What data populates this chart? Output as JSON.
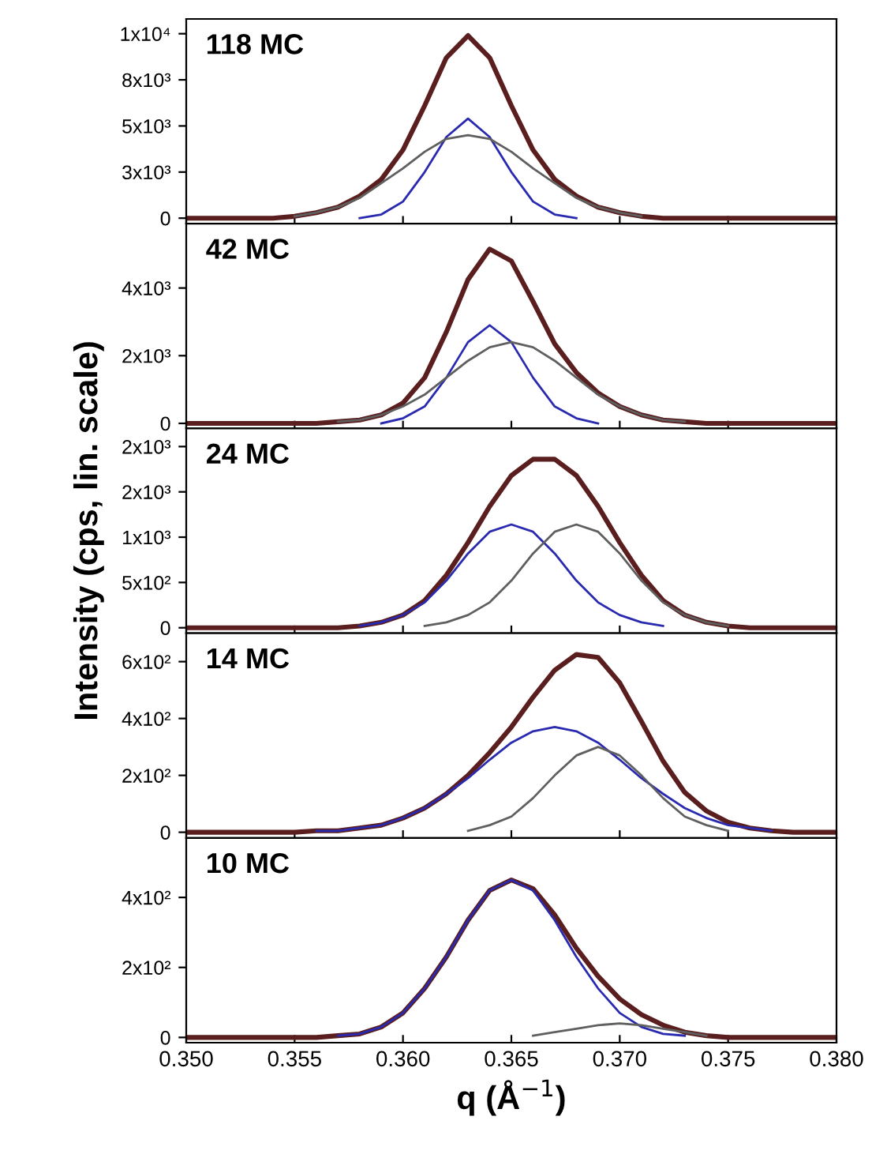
{
  "chart_data": [
    {
      "type": "line",
      "annotations": [
        "118 MC"
      ],
      "x": [
        0.35,
        0.351,
        0.352,
        0.353,
        0.354,
        0.355,
        0.356,
        0.357,
        0.358,
        0.359,
        0.36,
        0.361,
        0.362,
        0.363,
        0.364,
        0.365,
        0.366,
        0.367,
        0.368,
        0.369,
        0.37,
        0.371,
        0.372,
        0.373,
        0.374,
        0.375,
        0.376,
        0.377,
        0.378,
        0.379,
        0.38
      ],
      "series": [
        {
          "color": "#5a1e1e",
          "values": [
            0,
            0,
            0,
            0,
            0,
            100,
            300,
            600,
            1200,
            2100,
            3700,
            6100,
            8700,
            9900,
            8700,
            6100,
            3700,
            2100,
            1200,
            600,
            300,
            100,
            0,
            0,
            0,
            0,
            0,
            0,
            0,
            0,
            0
          ]
        },
        {
          "color": "#2a2ab0",
          "values": [
            null,
            null,
            null,
            null,
            null,
            null,
            null,
            null,
            0,
            200,
            900,
            2500,
            4400,
            5400,
            4400,
            2500,
            900,
            200,
            0,
            null,
            null,
            null,
            null,
            null,
            null,
            null,
            null,
            null,
            null,
            null,
            null
          ]
        },
        {
          "color": "#5f5f5f",
          "values": [
            null,
            null,
            null,
            null,
            null,
            100,
            300,
            600,
            1100,
            1900,
            2700,
            3600,
            4300,
            4500,
            4300,
            3600,
            2700,
            1900,
            1100,
            600,
            300,
            100,
            null,
            null,
            null,
            null,
            null,
            null,
            null,
            null,
            null
          ]
        }
      ],
      "xlim": [
        0.35,
        0.38
      ],
      "ylim": [
        -300,
        10800
      ],
      "yticks": [
        0,
        {
          "value": 2500,
          "label": "3x10³"
        },
        {
          "value": 5000,
          "label": "5x10³"
        },
        {
          "value": 7500,
          "label": "8x10³"
        },
        {
          "value": 10000,
          "label": "1x10⁴"
        }
      ],
      "tick_labels": "y",
      "marker": "none",
      "line_style": "solid",
      "grid": false,
      "legend": false
    },
    {
      "type": "line",
      "annotations": [
        "42 MC"
      ],
      "x": [
        0.35,
        0.351,
        0.352,
        0.353,
        0.354,
        0.355,
        0.356,
        0.357,
        0.358,
        0.359,
        0.36,
        0.361,
        0.362,
        0.363,
        0.364,
        0.365,
        0.366,
        0.367,
        0.368,
        0.369,
        0.37,
        0.371,
        0.372,
        0.373,
        0.374,
        0.375,
        0.376,
        0.377,
        0.378,
        0.379,
        0.38
      ],
      "series": [
        {
          "color": "#5a1e1e",
          "values": [
            0,
            0,
            0,
            0,
            0,
            0,
            0,
            50,
            100,
            250,
            600,
            1350,
            2700,
            4250,
            5150,
            4800,
            3600,
            2350,
            1500,
            900,
            500,
            250,
            100,
            50,
            0,
            0,
            0,
            0,
            0,
            0,
            0
          ]
        },
        {
          "color": "#2a2ab0",
          "values": [
            null,
            null,
            null,
            null,
            null,
            null,
            null,
            null,
            null,
            0,
            150,
            500,
            1350,
            2400,
            2900,
            2400,
            1350,
            500,
            150,
            0,
            null,
            null,
            null,
            null,
            null,
            null,
            null,
            null,
            null,
            null,
            null
          ]
        },
        {
          "color": "#5f5f5f",
          "values": [
            null,
            null,
            null,
            null,
            null,
            null,
            null,
            50,
            100,
            250,
            500,
            850,
            1350,
            1850,
            2250,
            2400,
            2250,
            1850,
            1350,
            850,
            500,
            250,
            100,
            50,
            null,
            null,
            null,
            null,
            null,
            null,
            null
          ]
        }
      ],
      "xlim": [
        0.35,
        0.38
      ],
      "ylim": [
        -150,
        5900
      ],
      "yticks": [
        0,
        {
          "value": 2000,
          "label": "2x10³"
        },
        {
          "value": 4000,
          "label": "4x10³"
        }
      ],
      "tick_labels": "y",
      "marker": "none",
      "line_style": "solid",
      "grid": false,
      "legend": false
    },
    {
      "type": "line",
      "annotations": [
        "24 MC"
      ],
      "ylabel": "Intensity (cps, lin. scale)",
      "x": [
        0.35,
        0.351,
        0.352,
        0.353,
        0.354,
        0.355,
        0.356,
        0.357,
        0.358,
        0.359,
        0.36,
        0.361,
        0.362,
        0.363,
        0.364,
        0.365,
        0.366,
        0.367,
        0.368,
        0.369,
        0.37,
        0.371,
        0.372,
        0.373,
        0.374,
        0.375,
        0.376,
        0.377,
        0.378,
        0.379,
        0.38
      ],
      "series": [
        {
          "color": "#5a1e1e",
          "values": [
            0,
            0,
            0,
            0,
            0,
            0,
            0,
            0,
            20,
            60,
            140,
            300,
            580,
            940,
            1340,
            1680,
            1860,
            1860,
            1680,
            1340,
            940,
            580,
            300,
            140,
            60,
            20,
            0,
            0,
            0,
            0,
            0
          ]
        },
        {
          "color": "#2a2ab0",
          "values": [
            null,
            null,
            null,
            null,
            null,
            null,
            null,
            null,
            20,
            60,
            140,
            280,
            520,
            820,
            1060,
            1140,
            1060,
            820,
            520,
            280,
            140,
            60,
            20,
            null,
            null,
            null,
            null,
            null,
            null,
            null,
            null
          ]
        },
        {
          "color": "#5f5f5f",
          "values": [
            null,
            null,
            null,
            null,
            null,
            null,
            null,
            null,
            null,
            null,
            null,
            20,
            60,
            140,
            280,
            520,
            820,
            1060,
            1140,
            1060,
            820,
            520,
            280,
            140,
            60,
            20,
            null,
            null,
            null,
            null,
            null
          ]
        }
      ],
      "xlim": [
        0.35,
        0.38
      ],
      "ylim": [
        -60,
        2200
      ],
      "yticks": [
        0,
        {
          "value": 500,
          "label": "5x10²"
        },
        {
          "value": 1000,
          "label": "1x10³"
        },
        {
          "value": 1500,
          "label": "2x10³"
        },
        {
          "value": 2000,
          "label": "2x10³"
        }
      ],
      "tick_labels": "y",
      "marker": "none",
      "line_style": "solid",
      "grid": false,
      "legend": false
    },
    {
      "type": "line",
      "annotations": [
        "14 MC"
      ],
      "x": [
        0.35,
        0.351,
        0.352,
        0.353,
        0.354,
        0.355,
        0.356,
        0.357,
        0.358,
        0.359,
        0.36,
        0.361,
        0.362,
        0.363,
        0.364,
        0.365,
        0.366,
        0.367,
        0.368,
        0.369,
        0.37,
        0.371,
        0.372,
        0.373,
        0.374,
        0.375,
        0.376,
        0.377,
        0.378,
        0.379,
        0.38
      ],
      "series": [
        {
          "color": "#5a1e1e",
          "values": [
            0,
            0,
            0,
            0,
            0,
            0,
            5,
            5,
            15,
            25,
            50,
            85,
            135,
            200,
            280,
            370,
            475,
            570,
            625,
            615,
            525,
            390,
            250,
            140,
            75,
            35,
            15,
            5,
            0,
            0,
            0
          ]
        },
        {
          "color": "#2a2ab0",
          "values": [
            null,
            null,
            null,
            null,
            null,
            null,
            5,
            5,
            15,
            25,
            50,
            85,
            135,
            190,
            255,
            315,
            355,
            370,
            355,
            315,
            255,
            190,
            135,
            85,
            50,
            25,
            15,
            5,
            null,
            null,
            null
          ]
        },
        {
          "color": "#5f5f5f",
          "values": [
            null,
            null,
            null,
            null,
            null,
            null,
            null,
            null,
            null,
            null,
            null,
            null,
            null,
            5,
            25,
            55,
            120,
            200,
            270,
            300,
            270,
            200,
            120,
            55,
            25,
            5,
            null,
            null,
            null,
            null,
            null
          ]
        }
      ],
      "xlim": [
        0.35,
        0.38
      ],
      "ylim": [
        -20,
        700
      ],
      "yticks": [
        0,
        {
          "value": 200,
          "label": "2x10²"
        },
        {
          "value": 400,
          "label": "4x10²"
        },
        {
          "value": 600,
          "label": "6x10²"
        }
      ],
      "tick_labels": "y",
      "marker": "none",
      "line_style": "solid",
      "grid": false,
      "legend": false
    },
    {
      "type": "line",
      "annotations": [
        "10 MC"
      ],
      "xlabel": "q (Å$^{−1}$)",
      "x": [
        0.35,
        0.351,
        0.352,
        0.353,
        0.354,
        0.355,
        0.356,
        0.357,
        0.358,
        0.359,
        0.36,
        0.361,
        0.362,
        0.363,
        0.364,
        0.365,
        0.366,
        0.367,
        0.368,
        0.369,
        0.37,
        0.371,
        0.372,
        0.373,
        0.374,
        0.375,
        0.376,
        0.377,
        0.378,
        0.379,
        0.38
      ],
      "series": [
        {
          "color": "#5a1e1e",
          "values": [
            0,
            0,
            0,
            0,
            0,
            0,
            0,
            5,
            10,
            30,
            70,
            140,
            230,
            335,
            420,
            450,
            425,
            350,
            255,
            175,
            110,
            65,
            35,
            15,
            5,
            0,
            0,
            0,
            0,
            0,
            0
          ]
        },
        {
          "color": "#2a2ab0",
          "values": [
            null,
            null,
            null,
            null,
            null,
            null,
            null,
            5,
            10,
            30,
            70,
            140,
            230,
            335,
            420,
            450,
            420,
            335,
            230,
            140,
            70,
            30,
            10,
            5,
            null,
            null,
            null,
            null,
            null,
            null,
            null
          ]
        },
        {
          "color": "#5f5f5f",
          "values": [
            null,
            null,
            null,
            null,
            null,
            null,
            null,
            null,
            null,
            null,
            null,
            null,
            null,
            null,
            null,
            null,
            5,
            15,
            25,
            35,
            40,
            35,
            25,
            15,
            5,
            null,
            null,
            null,
            null,
            null,
            null
          ]
        }
      ],
      "xlim": [
        0.35,
        0.38
      ],
      "xticks": [
        {
          "value": 0.35,
          "label": "0.350"
        },
        {
          "value": 0.355,
          "label": "0.355"
        },
        {
          "value": 0.36,
          "label": "0.360"
        },
        {
          "value": 0.365,
          "label": "0.365"
        },
        {
          "value": 0.37,
          "label": "0.370"
        },
        {
          "value": 0.375,
          "label": "0.375"
        },
        {
          "value": 0.38,
          "label": "0.380"
        }
      ],
      "ylim": [
        -15,
        570
      ],
      "yticks": [
        0,
        {
          "value": 200,
          "label": "2x10²"
        },
        {
          "value": 400,
          "label": "4x10²"
        }
      ],
      "marker": "none",
      "line_style": "solid",
      "grid": false,
      "legend": false
    }
  ]
}
